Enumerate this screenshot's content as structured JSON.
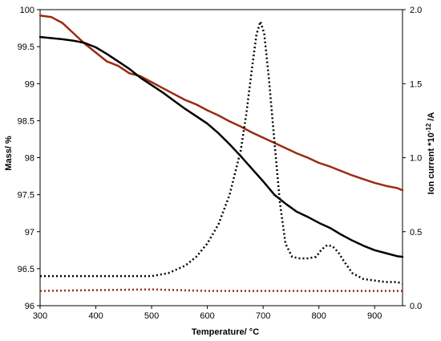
{
  "chart_data": {
    "type": "line",
    "xlabel_pre": "Temperature/ ",
    "xlabel_unit": "°C",
    "ylabel": "Mass/ %",
    "y2label_pre": "Ion current *10",
    "y2label_exp": "-12",
    "y2label_post": " /A",
    "xlim": [
      300,
      950
    ],
    "ylim": [
      96,
      100
    ],
    "y2lim": [
      0,
      2.0
    ],
    "x_ticks": [
      "300",
      "400",
      "500",
      "600",
      "700",
      "800",
      "900"
    ],
    "y_ticks": [
      "96",
      "96.5",
      "97",
      "97.5",
      "98",
      "98.5",
      "99",
      "99.5",
      "100"
    ],
    "y2_ticks": [
      "0.0",
      "0.5",
      "1.0",
      "1.5",
      "2.0"
    ],
    "grid": false,
    "legend": "none",
    "series": [
      {
        "axis": "left",
        "style": "solid",
        "color": "#9b2a12",
        "points": [
          [
            300,
            99.92
          ],
          [
            320,
            99.9
          ],
          [
            340,
            99.82
          ],
          [
            360,
            99.68
          ],
          [
            380,
            99.54
          ],
          [
            400,
            99.42
          ],
          [
            420,
            99.3
          ],
          [
            440,
            99.24
          ],
          [
            460,
            99.14
          ],
          [
            480,
            99.1
          ],
          [
            500,
            99.02
          ],
          [
            520,
            98.94
          ],
          [
            540,
            98.86
          ],
          [
            560,
            98.78
          ],
          [
            580,
            98.72
          ],
          [
            600,
            98.64
          ],
          [
            620,
            98.57
          ],
          [
            640,
            98.49
          ],
          [
            660,
            98.42
          ],
          [
            680,
            98.34
          ],
          [
            700,
            98.27
          ],
          [
            720,
            98.2
          ],
          [
            740,
            98.13
          ],
          [
            760,
            98.06
          ],
          [
            780,
            98.0
          ],
          [
            800,
            97.93
          ],
          [
            820,
            97.88
          ],
          [
            840,
            97.82
          ],
          [
            860,
            97.76
          ],
          [
            880,
            97.71
          ],
          [
            900,
            97.66
          ],
          [
            920,
            97.62
          ],
          [
            940,
            97.59
          ],
          [
            950,
            97.56
          ]
        ]
      },
      {
        "axis": "left",
        "style": "solid",
        "color": "#000000",
        "points": [
          [
            300,
            99.63
          ],
          [
            340,
            99.6
          ],
          [
            360,
            99.58
          ],
          [
            380,
            99.55
          ],
          [
            400,
            99.49
          ],
          [
            420,
            99.4
          ],
          [
            440,
            99.3
          ],
          [
            460,
            99.2
          ],
          [
            480,
            99.08
          ],
          [
            500,
            98.98
          ],
          [
            520,
            98.88
          ],
          [
            540,
            98.77
          ],
          [
            560,
            98.66
          ],
          [
            580,
            98.56
          ],
          [
            600,
            98.46
          ],
          [
            620,
            98.33
          ],
          [
            640,
            98.18
          ],
          [
            660,
            98.02
          ],
          [
            680,
            97.85
          ],
          [
            700,
            97.68
          ],
          [
            720,
            97.5
          ],
          [
            740,
            97.38
          ],
          [
            760,
            97.27
          ],
          [
            780,
            97.2
          ],
          [
            800,
            97.12
          ],
          [
            820,
            97.05
          ],
          [
            840,
            96.96
          ],
          [
            860,
            96.88
          ],
          [
            880,
            96.81
          ],
          [
            900,
            96.75
          ],
          [
            920,
            96.71
          ],
          [
            940,
            96.67
          ],
          [
            950,
            96.66
          ]
        ]
      },
      {
        "axis": "right",
        "style": "dotted",
        "color": "#000000",
        "points": [
          [
            300,
            0.2
          ],
          [
            340,
            0.2
          ],
          [
            380,
            0.2
          ],
          [
            420,
            0.2
          ],
          [
            460,
            0.2
          ],
          [
            500,
            0.2
          ],
          [
            530,
            0.22
          ],
          [
            560,
            0.27
          ],
          [
            580,
            0.33
          ],
          [
            600,
            0.42
          ],
          [
            620,
            0.55
          ],
          [
            640,
            0.75
          ],
          [
            660,
            1.05
          ],
          [
            670,
            1.3
          ],
          [
            680,
            1.6
          ],
          [
            688,
            1.83
          ],
          [
            695,
            1.92
          ],
          [
            702,
            1.84
          ],
          [
            710,
            1.55
          ],
          [
            720,
            1.12
          ],
          [
            730,
            0.7
          ],
          [
            740,
            0.42
          ],
          [
            752,
            0.33
          ],
          [
            765,
            0.32
          ],
          [
            780,
            0.32
          ],
          [
            795,
            0.33
          ],
          [
            805,
            0.38
          ],
          [
            815,
            0.41
          ],
          [
            825,
            0.4
          ],
          [
            835,
            0.36
          ],
          [
            845,
            0.3
          ],
          [
            860,
            0.22
          ],
          [
            880,
            0.18
          ],
          [
            900,
            0.17
          ],
          [
            920,
            0.16
          ],
          [
            940,
            0.16
          ],
          [
            950,
            0.15
          ]
        ]
      },
      {
        "axis": "right",
        "style": "dotted",
        "color": "#9b2a12",
        "points": [
          [
            300,
            0.1
          ],
          [
            400,
            0.105
          ],
          [
            500,
            0.11
          ],
          [
            600,
            0.1
          ],
          [
            700,
            0.1
          ],
          [
            800,
            0.1
          ],
          [
            900,
            0.1
          ],
          [
            950,
            0.1
          ]
        ]
      }
    ]
  }
}
